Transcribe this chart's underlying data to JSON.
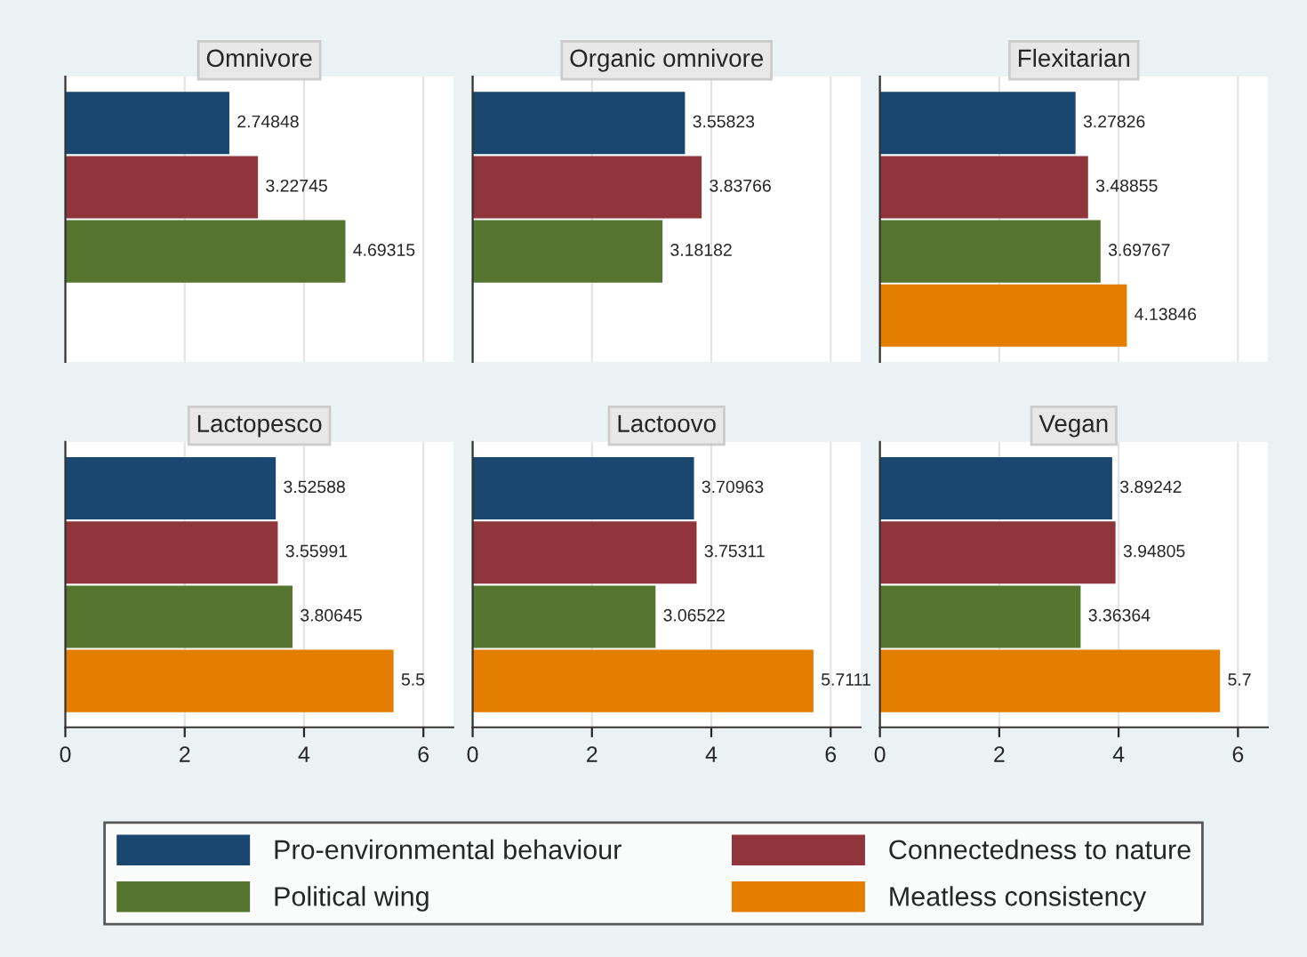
{
  "chart_data": [
    {
      "type": "bar",
      "orientation": "horizontal",
      "title": "Omnivore",
      "categories": [
        null
      ],
      "xlim": [
        0,
        6.5
      ],
      "xticks": [
        0,
        2,
        4,
        6
      ],
      "grid": "x",
      "data_labels": true,
      "tick_labels": false,
      "legend": "bottom",
      "series": [
        {
          "name": "Pro-environmental behaviour",
          "color": "#1a476f",
          "values": [
            2.74848
          ]
        },
        {
          "name": "Connectedness to nature",
          "color": "#90353b",
          "values": [
            3.22745
          ]
        },
        {
          "name": "Political wing",
          "color": "#55752f",
          "values": [
            4.69315
          ]
        },
        {
          "name": "Meatless consistency",
          "color": "#e37e00",
          "values": [
            null
          ]
        }
      ]
    },
    {
      "type": "bar",
      "orientation": "horizontal",
      "title": "Organic omnivore",
      "categories": [
        null
      ],
      "xlim": [
        0,
        6.5
      ],
      "xticks": [
        0,
        2,
        4,
        6
      ],
      "grid": "x",
      "data_labels": true,
      "tick_labels": false,
      "series": [
        {
          "color": "#1a476f",
          "values": [
            3.55823
          ]
        },
        {
          "color": "#90353b",
          "values": [
            3.83766
          ]
        },
        {
          "color": "#55752f",
          "values": [
            3.18182
          ]
        },
        {
          "color": "#e37e00",
          "values": [
            null
          ]
        }
      ]
    },
    {
      "type": "bar",
      "orientation": "horizontal",
      "title": "Flexitarian",
      "categories": [
        null
      ],
      "xlim": [
        0,
        6.5
      ],
      "xticks": [
        0,
        2,
        4,
        6
      ],
      "grid": "x",
      "data_labels": true,
      "tick_labels": false,
      "series": [
        {
          "color": "#1a476f",
          "values": [
            3.27826
          ]
        },
        {
          "color": "#90353b",
          "values": [
            3.48855
          ]
        },
        {
          "color": "#55752f",
          "values": [
            3.69767
          ]
        },
        {
          "color": "#e37e00",
          "values": [
            4.13846
          ]
        }
      ]
    },
    {
      "type": "bar",
      "orientation": "horizontal",
      "title": "Lactopesco",
      "categories": [
        null
      ],
      "xlim": [
        0,
        6.5
      ],
      "xticks": [
        0,
        2,
        4,
        6
      ],
      "grid": "x",
      "data_labels": true,
      "tick_labels": "x",
      "series": [
        {
          "color": "#1a476f",
          "values": [
            3.52588
          ]
        },
        {
          "color": "#90353b",
          "values": [
            3.55991
          ]
        },
        {
          "color": "#55752f",
          "values": [
            3.80645
          ]
        },
        {
          "color": "#e37e00",
          "values": [
            5.5
          ]
        }
      ]
    },
    {
      "type": "bar",
      "orientation": "horizontal",
      "title": "Lactoovo",
      "categories": [
        null
      ],
      "xlim": [
        0,
        6.5
      ],
      "xticks": [
        0,
        2,
        4,
        6
      ],
      "grid": "x",
      "data_labels": true,
      "tick_labels": "x",
      "series": [
        {
          "color": "#1a476f",
          "values": [
            3.70963
          ]
        },
        {
          "color": "#90353b",
          "values": [
            3.75311
          ]
        },
        {
          "color": "#55752f",
          "values": [
            3.06522
          ]
        },
        {
          "color": "#e37e00",
          "values": [
            5.7111
          ]
        }
      ]
    },
    {
      "type": "bar",
      "orientation": "horizontal",
      "title": "Vegan",
      "categories": [
        null
      ],
      "xlim": [
        0,
        6.5
      ],
      "xticks": [
        0,
        2,
        4,
        6
      ],
      "grid": "x",
      "data_labels": true,
      "tick_labels": "x",
      "series": [
        {
          "color": "#1a476f",
          "values": [
            3.89242
          ]
        },
        {
          "color": "#90353b",
          "values": [
            3.94805
          ]
        },
        {
          "color": "#55752f",
          "values": [
            3.36364
          ]
        },
        {
          "color": "#e37e00",
          "values": [
            5.7
          ]
        }
      ]
    }
  ]
}
